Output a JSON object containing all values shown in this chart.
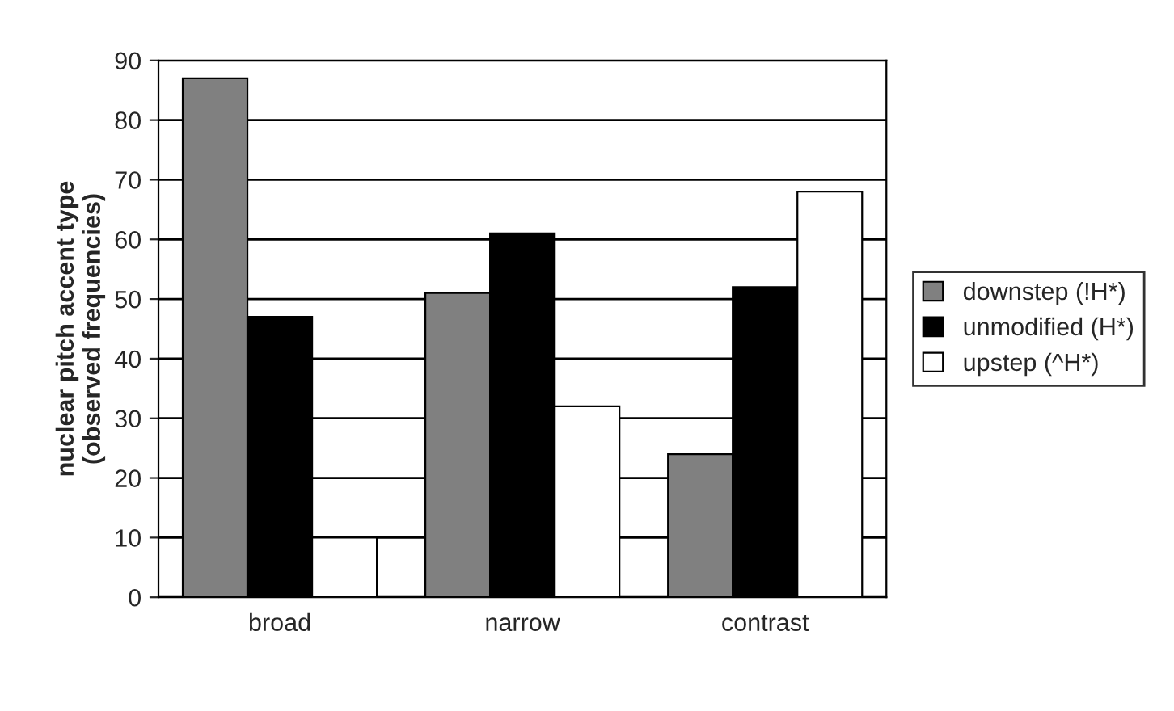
{
  "chart_data": {
    "type": "bar",
    "ylabel": "nuclear pitch accent type\n(observed frequencies)",
    "categories": [
      "broad",
      "narrow",
      "contrast"
    ],
    "series": [
      {
        "name": "downstep (!H*)",
        "color": "#808080",
        "values": [
          87,
          51,
          24
        ]
      },
      {
        "name": "unmodified (H*)",
        "color": "#000000",
        "values": [
          47,
          61,
          52
        ]
      },
      {
        "name": "upstep (^H*)",
        "color": "#ffffff",
        "values": [
          10,
          32,
          68
        ]
      }
    ],
    "ylim": [
      0,
      90
    ],
    "yticks": [
      0,
      10,
      20,
      30,
      40,
      50,
      60,
      70,
      80,
      90
    ],
    "grid": "y",
    "legend": "right"
  }
}
